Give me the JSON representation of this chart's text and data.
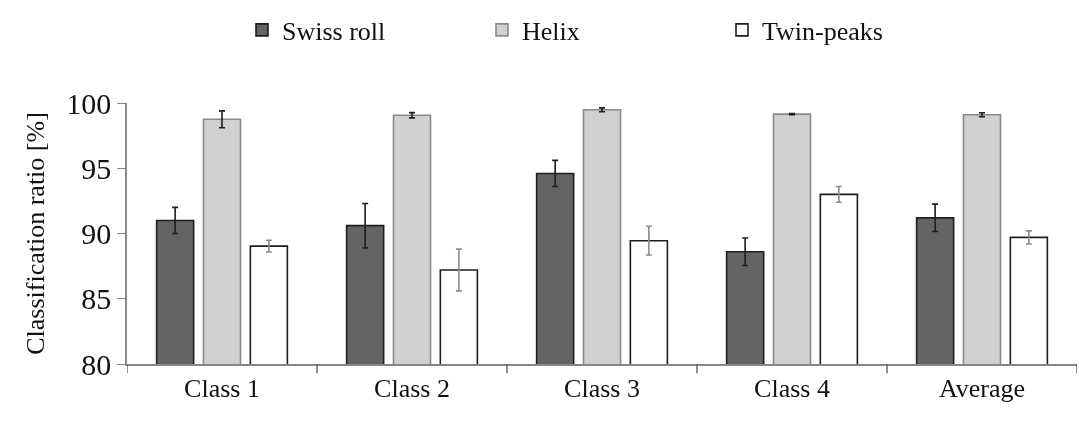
{
  "chart_data": {
    "type": "bar",
    "ylabel": "Classification ratio [%]",
    "categories": [
      "Class 1",
      "Class 2",
      "Class 3",
      "Class 4",
      "Average"
    ],
    "series": [
      {
        "name": "Swiss roll",
        "color": "#636563",
        "values": [
          91.0,
          90.6,
          94.6,
          88.6,
          91.2
        ],
        "errors": [
          1.0,
          1.7,
          1.0,
          1.05,
          1.05
        ]
      },
      {
        "name": "Helix",
        "color": "#d0d0d0",
        "values": [
          98.75,
          99.06,
          99.48,
          99.15,
          99.1
        ],
        "errors": [
          0.65,
          0.2,
          0.15,
          0.05,
          0.15
        ]
      },
      {
        "name": "Twin-peaks",
        "color": "#ffffff",
        "values": [
          89.03,
          87.2,
          89.45,
          93.0,
          89.7
        ],
        "errors": [
          0.45,
          1.6,
          1.1,
          0.6,
          0.5
        ]
      }
    ],
    "ylim": [
      80,
      100
    ],
    "yticks": [
      80,
      85,
      90,
      95,
      100
    ],
    "grid": false,
    "legend": "top"
  }
}
